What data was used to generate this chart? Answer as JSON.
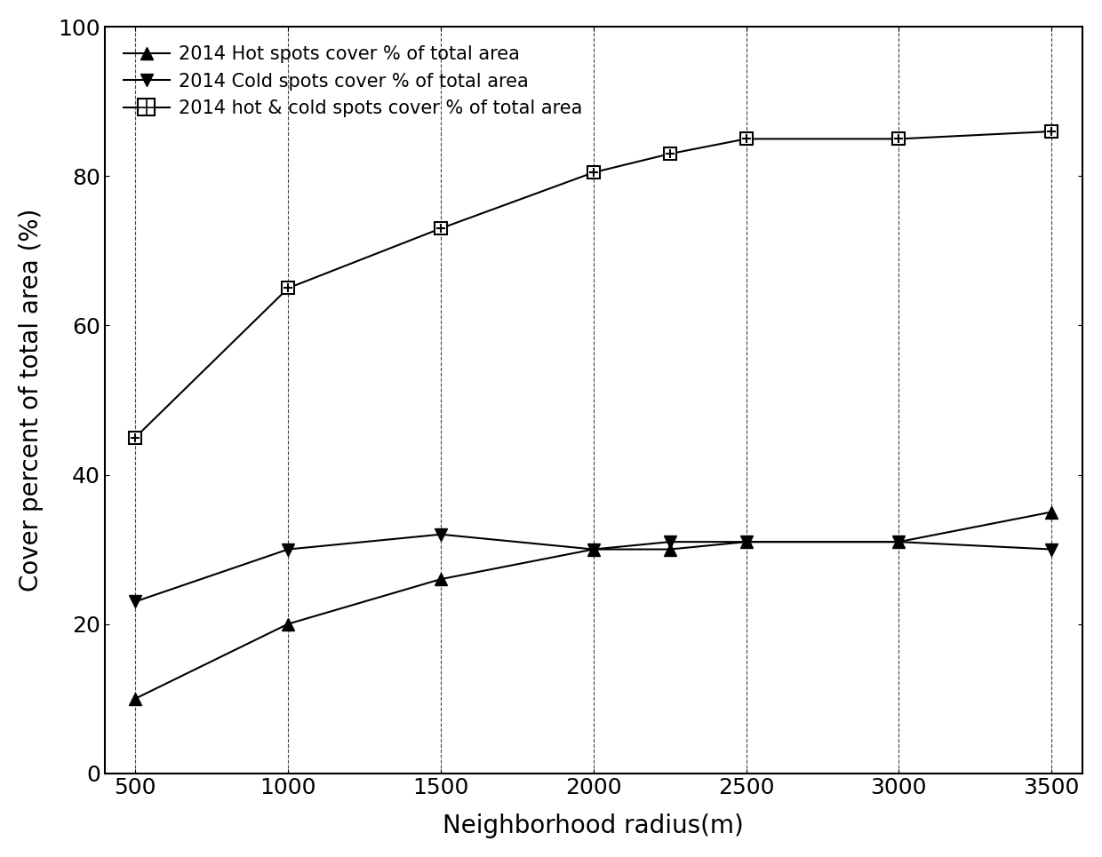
{
  "x": [
    500,
    1000,
    1500,
    2000,
    2250,
    2500,
    3000,
    3500
  ],
  "hot_spots": [
    10,
    20,
    26,
    30,
    30,
    31,
    31,
    35
  ],
  "cold_spots": [
    23,
    30,
    32,
    30,
    31,
    31,
    31,
    30
  ],
  "hot_cold_spots": [
    45,
    65,
    73,
    80.5,
    83,
    85,
    85,
    86
  ],
  "xlabel": "Neighborhood radius(m)",
  "ylabel": "Cover percent of total area (%)",
  "legend_hot": "2014 Hot spots cover % of total area",
  "legend_cold": "2014 Cold spots cover % of total area",
  "legend_hot_cold": "2014 hot & cold spots cover % of total area",
  "xlim": [
    400,
    3600
  ],
  "ylim": [
    0,
    100
  ],
  "yticks": [
    0,
    20,
    40,
    60,
    80,
    100
  ],
  "xticks": [
    500,
    1000,
    1500,
    2000,
    2500,
    3000,
    3500
  ],
  "vgrid_x": [
    500,
    1000,
    1500,
    2000,
    2500,
    3000,
    3500
  ],
  "grid_color": "#444444",
  "line_color": "#000000",
  "bg_color": "#ffffff",
  "fontsize_label": 20,
  "fontsize_tick": 18,
  "fontsize_legend": 15,
  "marker_size": 10,
  "line_width": 1.5
}
